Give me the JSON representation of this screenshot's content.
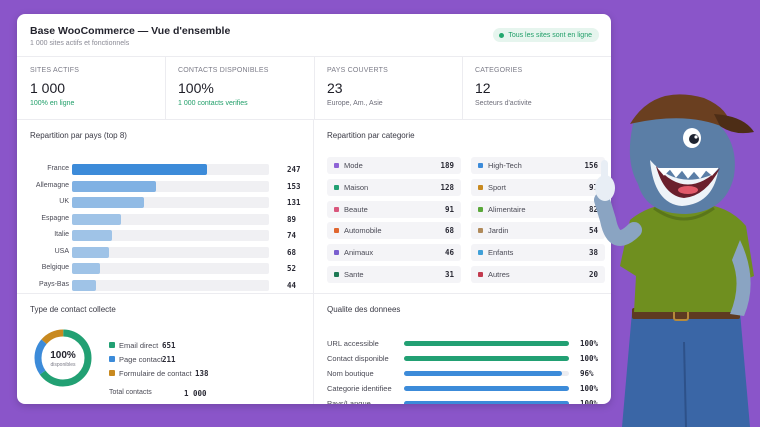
{
  "header": {
    "title": "Base WooCommerce — Vue d'ensemble",
    "subtitle": "1 000 sites actifs et fonctionnels",
    "status": "Tous les sites sont en ligne"
  },
  "stats": [
    {
      "label": "SITES ACTIFS",
      "value": "1 000",
      "note": "100% en ligne",
      "note_color": "green"
    },
    {
      "label": "CONTACTS DISPONIBLES",
      "value": "100%",
      "note": "1 000 contacts verifies",
      "note_color": "green"
    },
    {
      "label": "PAYS COUVERTS",
      "value": "23",
      "note": "Europe, Am., Asie",
      "note_color": "gray"
    },
    {
      "label": "CATEGORIES",
      "value": "12",
      "note": "Secteurs d'activite",
      "note_color": "gray"
    }
  ],
  "countries": {
    "title": "Repartition par pays (top 8)",
    "max": 247,
    "items": [
      {
        "name": "France",
        "value": 247
      },
      {
        "name": "Allemagne",
        "value": 153
      },
      {
        "name": "UK",
        "value": 131
      },
      {
        "name": "Espagne",
        "value": 89
      },
      {
        "name": "Italie",
        "value": 74
      },
      {
        "name": "USA",
        "value": 68
      },
      {
        "name": "Belgique",
        "value": 52
      },
      {
        "name": "Pays-Bas",
        "value": 44
      }
    ]
  },
  "categories": {
    "title": "Repartition par categorie",
    "items": [
      {
        "name": "Mode",
        "value": 189,
        "color": "#8e63d6"
      },
      {
        "name": "High-Tech",
        "value": 156,
        "color": "#3c8bd9"
      },
      {
        "name": "Maison",
        "value": 128,
        "color": "#22a073"
      },
      {
        "name": "Sport",
        "value": 97,
        "color": "#c8891f"
      },
      {
        "name": "Beaute",
        "value": 91,
        "color": "#d9567c"
      },
      {
        "name": "Alimentaire",
        "value": 82,
        "color": "#5aa83a"
      },
      {
        "name": "Automobile",
        "value": 68,
        "color": "#e0662f"
      },
      {
        "name": "Jardin",
        "value": 54,
        "color": "#b08a5a"
      },
      {
        "name": "Animaux",
        "value": 46,
        "color": "#7a5fcf"
      },
      {
        "name": "Enfants",
        "value": 38,
        "color": "#3fa0d8"
      },
      {
        "name": "Sante",
        "value": 31,
        "color": "#1e7a55"
      },
      {
        "name": "Autres",
        "value": 20,
        "color": "#c23a4e"
      }
    ]
  },
  "contact_types": {
    "title": "Type de contact collecte",
    "donut_value": "100%",
    "donut_label": "disponibles",
    "items": [
      {
        "name": "Email direct",
        "value": 651,
        "color": "#22a073"
      },
      {
        "name": "Page contact",
        "value": 211,
        "color": "#3c8bd9"
      },
      {
        "name": "Formulaire de contact",
        "value": 138,
        "color": "#c8891f"
      }
    ],
    "total_label": "Total contacts",
    "total_value": "1 000"
  },
  "quality": {
    "title": "Qualite des donnees",
    "items": [
      {
        "name": "URL accessible",
        "value": 100,
        "color": "#22a073"
      },
      {
        "name": "Contact disponible",
        "value": 100,
        "color": "#22a073"
      },
      {
        "name": "Nom boutique",
        "value": 96,
        "color": "#3c8bd9"
      },
      {
        "name": "Categorie identifiee",
        "value": 100,
        "color": "#3c8bd9"
      },
      {
        "name": "Pays/Langue",
        "value": 100,
        "color": "#3c8bd9"
      }
    ]
  },
  "colors": {
    "background": "#8a55c9",
    "accent_green": "#22a073",
    "accent_blue": "#3c8bd9"
  },
  "mascot": {
    "icon": "shark-mascot-thumbs-up"
  }
}
